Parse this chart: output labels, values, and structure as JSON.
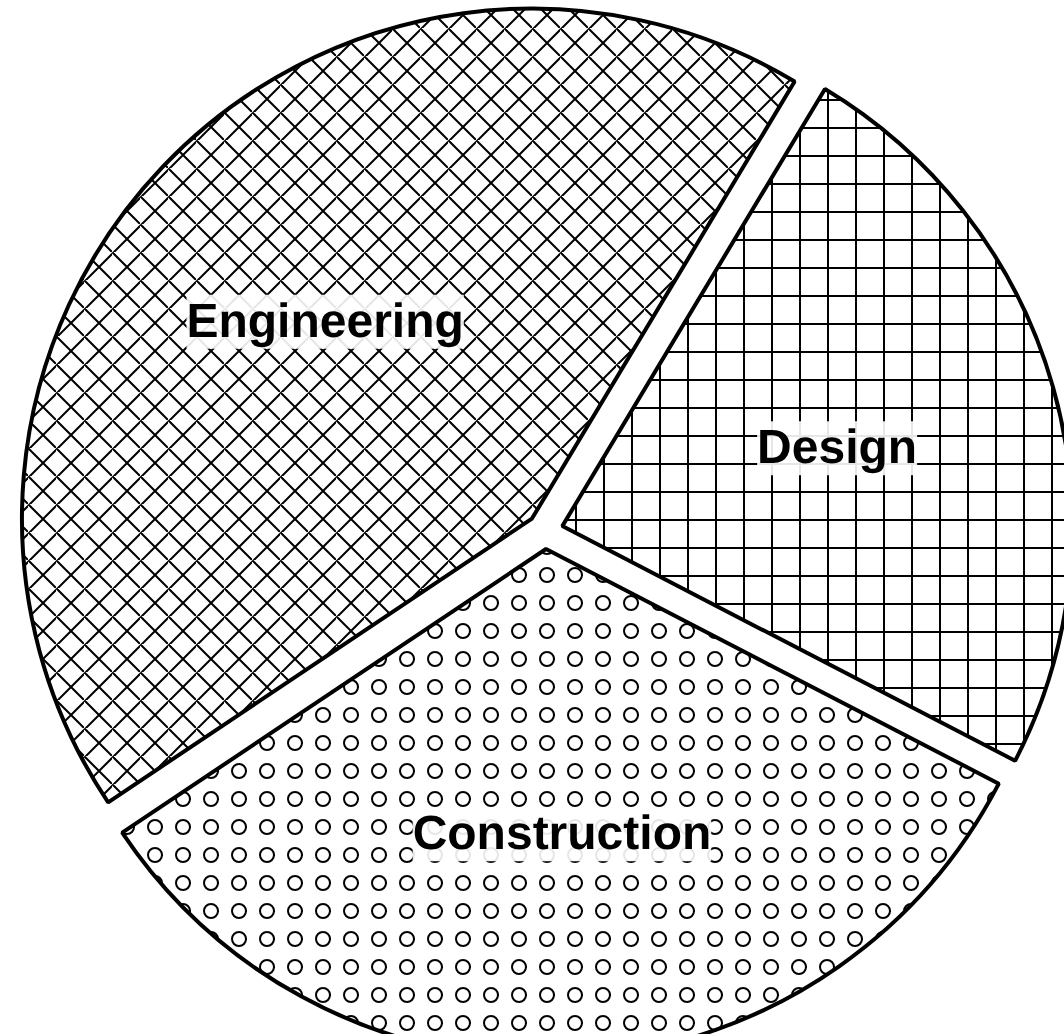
{
  "chart_data": {
    "type": "pie",
    "categories": [
      "Design",
      "Construction",
      "Engineering"
    ],
    "values": [
      24,
      33,
      43
    ],
    "colors": [
      "#ffffff",
      "#ffffff",
      "#ffffff"
    ]
  }
}
